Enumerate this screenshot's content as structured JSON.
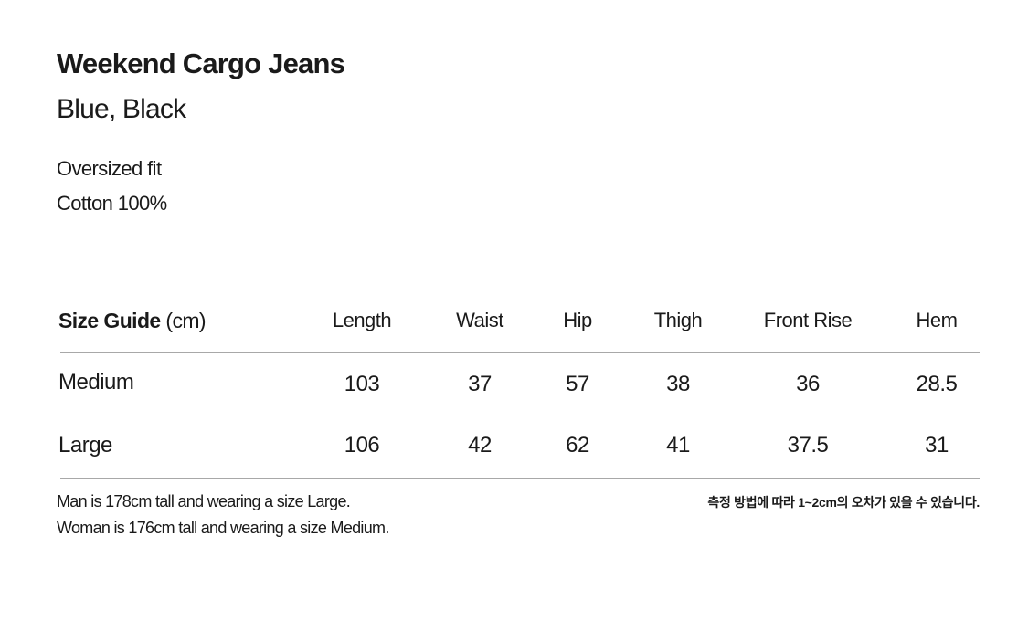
{
  "product": {
    "name": "Weekend Cargo Jeans",
    "colors": "Blue, Black",
    "fit": "Oversized fit",
    "material": "Cotton 100%"
  },
  "size_guide": {
    "title_bold": "Size Guide",
    "title_unit": "(cm)",
    "columns": [
      "Length",
      "Waist",
      "Hip",
      "Thigh",
      "Front Rise",
      "Hem"
    ],
    "rows": [
      {
        "size": "Medium",
        "values": [
          "103",
          "37",
          "57",
          "38",
          "36",
          "28.5"
        ]
      },
      {
        "size": "Large",
        "values": [
          "106",
          "42",
          "62",
          "41",
          "37.5",
          "31"
        ]
      }
    ]
  },
  "notes": {
    "model_man": "Man is 178cm tall and wearing a size Large.",
    "model_woman": "Woman is 176cm tall and wearing a size Medium.",
    "tolerance_ko": "측정 방법에 따라 1~2cm의 오차가 있을 수 있습니다."
  }
}
